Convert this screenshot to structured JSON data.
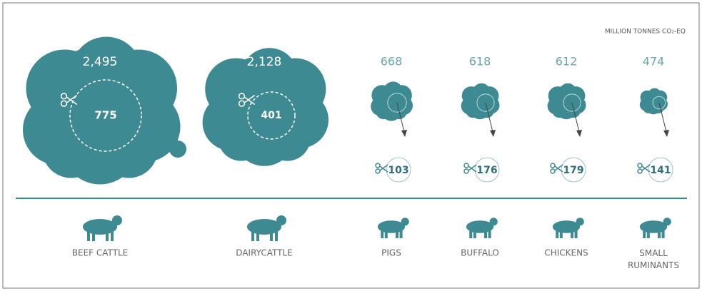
{
  "unit": "MILLION TONNES CO₂-EQ",
  "items": [
    {
      "label": "BEEF CATTLE",
      "total": "2,495",
      "reduction": "775"
    },
    {
      "label": "DAIRYCATTLE",
      "total": "2,128",
      "reduction": "401"
    },
    {
      "label": "PIGS",
      "total": "668",
      "reduction": "103"
    },
    {
      "label": "BUFFALO",
      "total": "618",
      "reduction": "176"
    },
    {
      "label": "CHICKENS",
      "total": "612",
      "reduction": "179"
    },
    {
      "label": "SMALL RUMINANTS",
      "total": "474",
      "reduction": "141"
    }
  ]
}
